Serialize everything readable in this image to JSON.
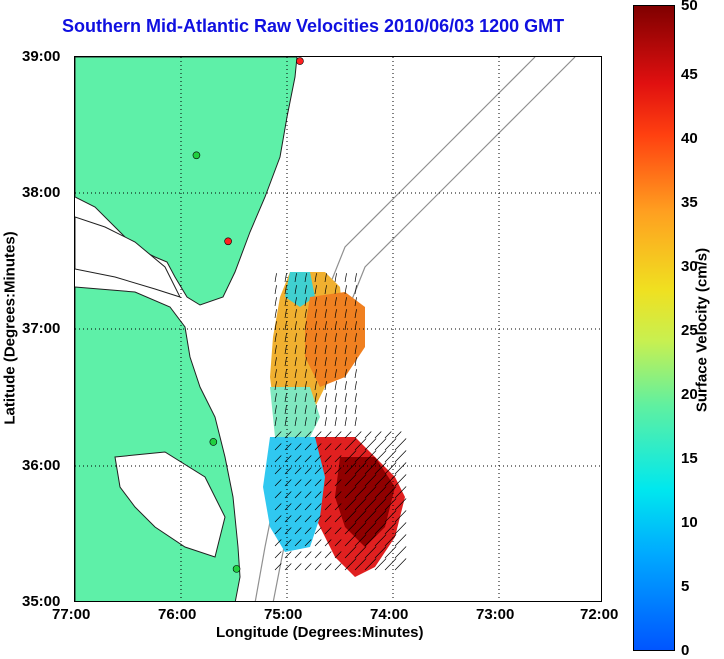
{
  "title": "Southern Mid-Atlantic Raw Velocities 2010/06/03 1200 GMT",
  "map": {
    "xlabel": "Longitude (Degrees:Minutes)",
    "ylabel": "Latitude (Degrees:Minutes)",
    "x_ticks": [
      "77:00",
      "76:00",
      "75:00",
      "74:00",
      "73:00",
      "72:00"
    ],
    "y_ticks": [
      "39:00",
      "38:00",
      "37:00",
      "36:00",
      "35:00"
    ],
    "lon_range": [
      -77,
      -72
    ],
    "lat_range": [
      35,
      39
    ],
    "land_color": "#5ef0a8",
    "contour_color": "#909090",
    "station_markers": [
      {
        "lon": -74.87,
        "lat": 38.97,
        "color": "#ff2020"
      },
      {
        "lon": -75.85,
        "lat": 38.28,
        "color": "#20d040"
      },
      {
        "lon": -75.55,
        "lat": 37.65,
        "color": "#ff2020"
      },
      {
        "lon": -75.69,
        "lat": 36.18,
        "color": "#20d040"
      },
      {
        "lon": -75.47,
        "lat": 35.25,
        "color": "#20d040"
      }
    ]
  },
  "colorbar": {
    "label": "Surface Velocity (cm/s)",
    "ticks": [
      "0",
      "5",
      "10",
      "15",
      "20",
      "25",
      "30",
      "35",
      "40",
      "45",
      "50"
    ],
    "range": [
      0,
      50
    ]
  }
}
